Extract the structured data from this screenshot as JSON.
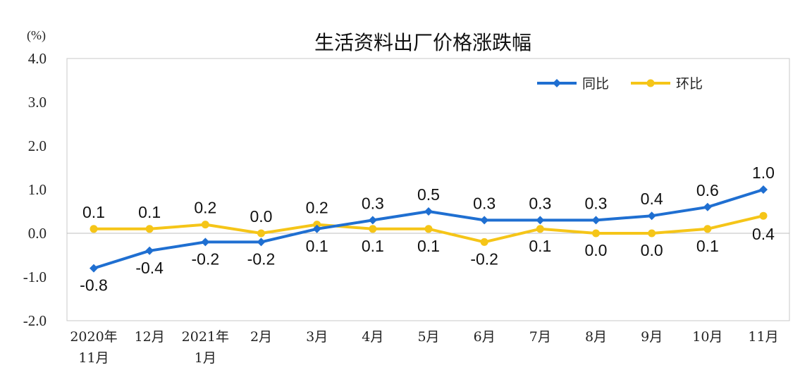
{
  "chart_data": {
    "type": "line",
    "title": "生活资料出厂价格涨跌幅",
    "unit": "(%)",
    "ylim": [
      -2.0,
      4.0
    ],
    "yticks": [
      "4.0",
      "3.0",
      "2.0",
      "1.0",
      "0.0",
      "-1.0",
      "-2.0"
    ],
    "categories": [
      [
        "2020年",
        "11月"
      ],
      [
        "12月"
      ],
      [
        "2021年",
        "1月"
      ],
      [
        "2月"
      ],
      [
        "3月"
      ],
      [
        "4月"
      ],
      [
        "5月"
      ],
      [
        "6月"
      ],
      [
        "7月"
      ],
      [
        "8月"
      ],
      [
        "9月"
      ],
      [
        "10月"
      ],
      [
        "11月"
      ]
    ],
    "series": [
      {
        "name": "同比",
        "color": "#1f6fd1",
        "marker": "diamond",
        "values": [
          -0.8,
          -0.4,
          -0.2,
          -0.2,
          0.1,
          0.3,
          0.5,
          0.3,
          0.3,
          0.3,
          0.4,
          0.6,
          1.0
        ],
        "labels": [
          "-0.8",
          "-0.4",
          "-0.2",
          "-0.2",
          "0.1",
          "0.3",
          "0.5",
          "0.3",
          "0.3",
          "0.3",
          "0.4",
          "0.6",
          "1.0"
        ]
      },
      {
        "name": "环比",
        "color": "#f5c518",
        "marker": "circle",
        "values": [
          0.1,
          0.1,
          0.2,
          0.0,
          0.2,
          0.1,
          0.1,
          -0.2,
          0.1,
          0.0,
          0.0,
          0.1,
          0.4
        ],
        "labels": [
          "0.1",
          "0.1",
          "0.2",
          "0.0",
          "0.2",
          "0.1",
          "0.1",
          "-0.2",
          "0.1",
          "0.0",
          "0.0",
          "0.1",
          "0.4"
        ]
      }
    ],
    "legend_position": "top-right",
    "grid": false
  }
}
